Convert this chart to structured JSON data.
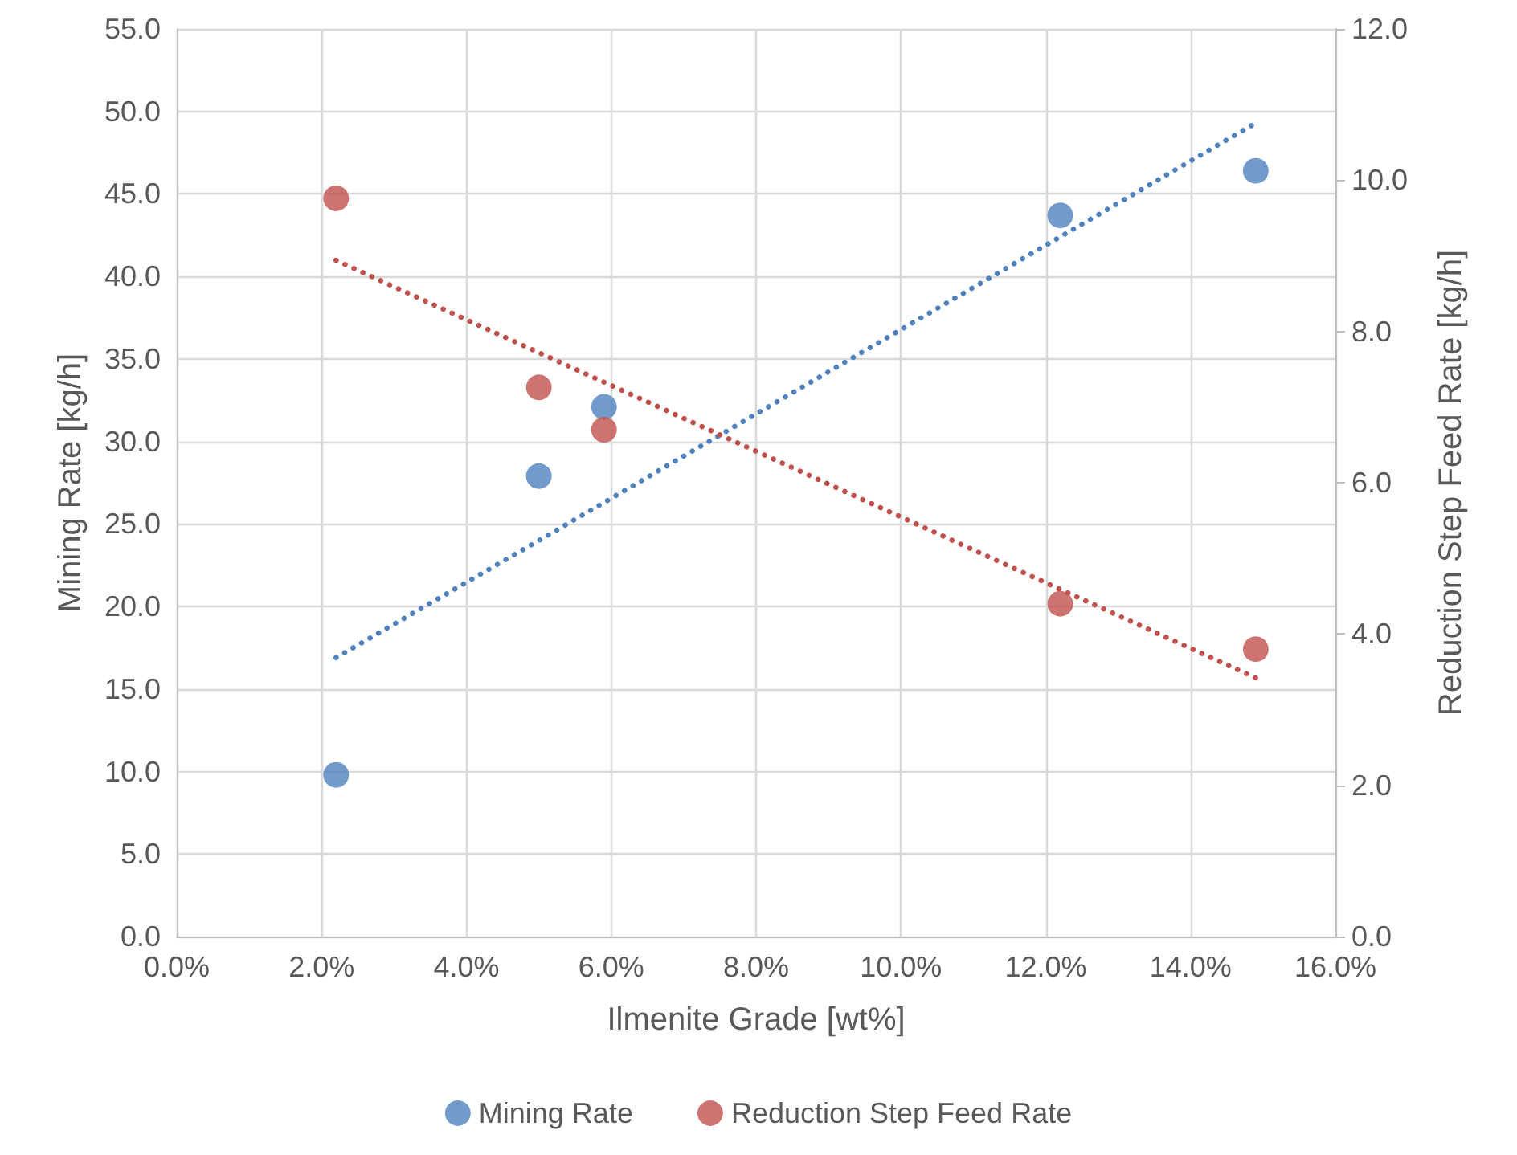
{
  "chart_data": {
    "type": "scatter",
    "xlabel": "Ilmenite Grade [wt%]",
    "ylabel": "Mining Rate [kg/h]",
    "y2label": "Reduction Step Feed Rate [kg/h]",
    "x": [
      2.2,
      5.0,
      5.9,
      12.2,
      14.9
    ],
    "series": [
      {
        "name": "Mining Rate",
        "color": "#4f81bd",
        "values": [
          9.8,
          27.9,
          32.1,
          43.7,
          46.4
        ]
      },
      {
        "name": "Reduction Step Feed Rate",
        "color": "#c0504d",
        "axis": "y2",
        "values": [
          9.76,
          7.26,
          6.7,
          4.4,
          3.8
        ]
      },
      {
        "type": "line",
        "color": "#4f81bd",
        "values": [
          16.9,
          24.0,
          26.3,
          42.4,
          49.3
        ],
        "marker": "none",
        "line_style": "dotted"
      },
      {
        "type": "line",
        "color": "#c0504d",
        "axis": "y2",
        "values": [
          8.94,
          7.72,
          7.33,
          4.59,
          3.42
        ],
        "marker": "none",
        "line_style": "dotted"
      }
    ],
    "marker": "circle",
    "xlim": [
      0,
      16
    ],
    "xticks": [
      {
        "value": 0,
        "label": "0.0%"
      },
      {
        "value": 2,
        "label": "2.0%"
      },
      {
        "value": 4,
        "label": "4.0%"
      },
      {
        "value": 6,
        "label": "6.0%"
      },
      {
        "value": 8,
        "label": "8.0%"
      },
      {
        "value": 10,
        "label": "10.0%"
      },
      {
        "value": 12,
        "label": "12.0%"
      },
      {
        "value": 14,
        "label": "14.0%"
      },
      {
        "value": 16,
        "label": "16.0%"
      }
    ],
    "ylim": [
      0,
      55
    ],
    "yticks": [
      {
        "value": 0,
        "label": "0.0"
      },
      {
        "value": 5,
        "label": "5.0"
      },
      {
        "value": 10,
        "label": "10.0"
      },
      {
        "value": 15,
        "label": "15.0"
      },
      {
        "value": 20,
        "label": "20.0"
      },
      {
        "value": 25,
        "label": "25.0"
      },
      {
        "value": 30,
        "label": "30.0"
      },
      {
        "value": 35,
        "label": "35.0"
      },
      {
        "value": 40,
        "label": "40.0"
      },
      {
        "value": 45,
        "label": "45.0"
      },
      {
        "value": 50,
        "label": "50.0"
      },
      {
        "value": 55,
        "label": "55.0"
      }
    ],
    "y2lim": [
      0,
      12
    ],
    "y2ticks": [
      {
        "value": 0,
        "label": "0.0"
      },
      {
        "value": 2,
        "label": "2.0"
      },
      {
        "value": 4,
        "label": "4.0"
      },
      {
        "value": 6,
        "label": "6.0"
      },
      {
        "value": 8,
        "label": "8.0"
      },
      {
        "value": 10,
        "label": "10.0"
      },
      {
        "value": 12,
        "label": "12.0"
      }
    ],
    "grid": true,
    "legend": "bottom"
  }
}
